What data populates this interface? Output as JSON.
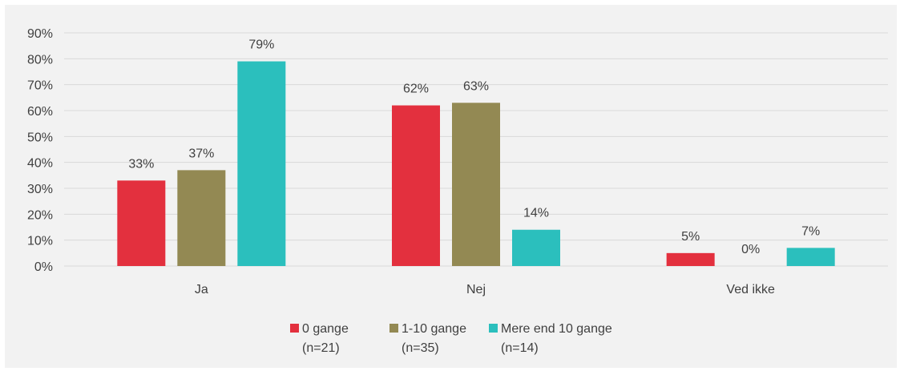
{
  "chart_data": {
    "type": "bar",
    "categories": [
      "Ja",
      "Nej",
      "Ved ikke"
    ],
    "series": [
      {
        "name": "0 gange (n=21)",
        "name_lines": [
          "0 gange",
          "(n=21)"
        ],
        "color": "#e3303e",
        "values": [
          33,
          62,
          5
        ],
        "labels": [
          "33%",
          "62%",
          "5%"
        ]
      },
      {
        "name": "1-10 gange (n=35)",
        "name_lines": [
          "1-10 gange",
          "(n=35)"
        ],
        "color": "#938953",
        "values": [
          37,
          63,
          0
        ],
        "labels": [
          "37%",
          "63%",
          "0%"
        ]
      },
      {
        "name": "Mere end 10 gange (n=14)",
        "name_lines": [
          "Mere end 10 gange",
          "(n=14)"
        ],
        "color": "#2bbfbd",
        "values": [
          79,
          14,
          7
        ],
        "labels": [
          "79%",
          "14%",
          "7%"
        ]
      }
    ],
    "ylim": [
      0,
      90
    ],
    "yticks": [
      0,
      10,
      20,
      30,
      40,
      50,
      60,
      70,
      80,
      90
    ],
    "ytick_labels": [
      "0%",
      "10%",
      "20%",
      "30%",
      "40%",
      "50%",
      "60%",
      "70%",
      "80%",
      "90%"
    ],
    "grid": true,
    "legend_position": "bottom",
    "background": "#f2f2f2",
    "gridline_color": "#d9d9d9",
    "text_color": "#404040"
  }
}
